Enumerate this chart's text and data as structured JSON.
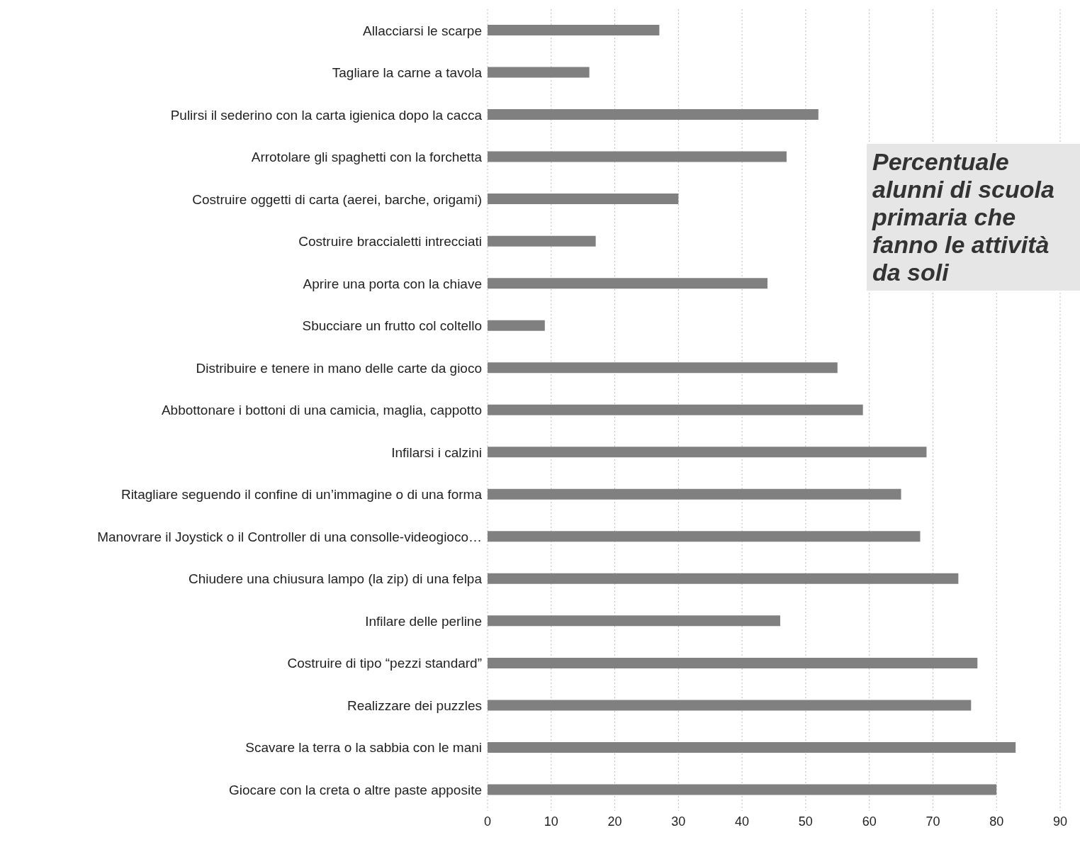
{
  "chart_data": {
    "type": "bar",
    "orientation": "horizontal",
    "title": "Percentuale alunni di scuola primaria che fanno le attività da soli",
    "categories": [
      "Allacciarsi le scarpe",
      "Tagliare la carne a tavola",
      "Pulirsi il sederino con la carta igienica dopo la cacca",
      "Arrotolare gli spaghetti con la forchetta",
      "Costruire oggetti di carta (aerei, barche, origami)",
      "Costruire braccialetti intrecciati",
      "Aprire una porta con la chiave",
      "Sbucciare un frutto col coltello",
      "Distribuire e tenere in mano delle carte da gioco",
      "Abbottonare i bottoni di una camicia, maglia, cappotto",
      "Infilarsi i calzini",
      "Ritagliare seguendo il confine di un’immagine o di una forma",
      "Manovrare il Joystick o il Controller di una consolle-videogioco…",
      "Chiudere una chiusura lampo (la zip) di una felpa",
      "Infilare delle perline",
      "Costruire di tipo “pezzi standard”",
      "Realizzare dei puzzles",
      "Scavare la terra o la sabbia con le mani",
      "Giocare con la creta o altre paste apposite"
    ],
    "values": [
      27,
      16,
      52,
      47,
      30,
      17,
      44,
      9,
      55,
      59,
      69,
      65,
      68,
      74,
      46,
      77,
      76,
      83,
      80
    ],
    "color": "#808080",
    "xlim": [
      0,
      90
    ],
    "xticks": [
      0,
      10,
      20,
      30,
      40,
      50,
      60,
      70,
      80,
      90
    ],
    "grid": "x"
  }
}
